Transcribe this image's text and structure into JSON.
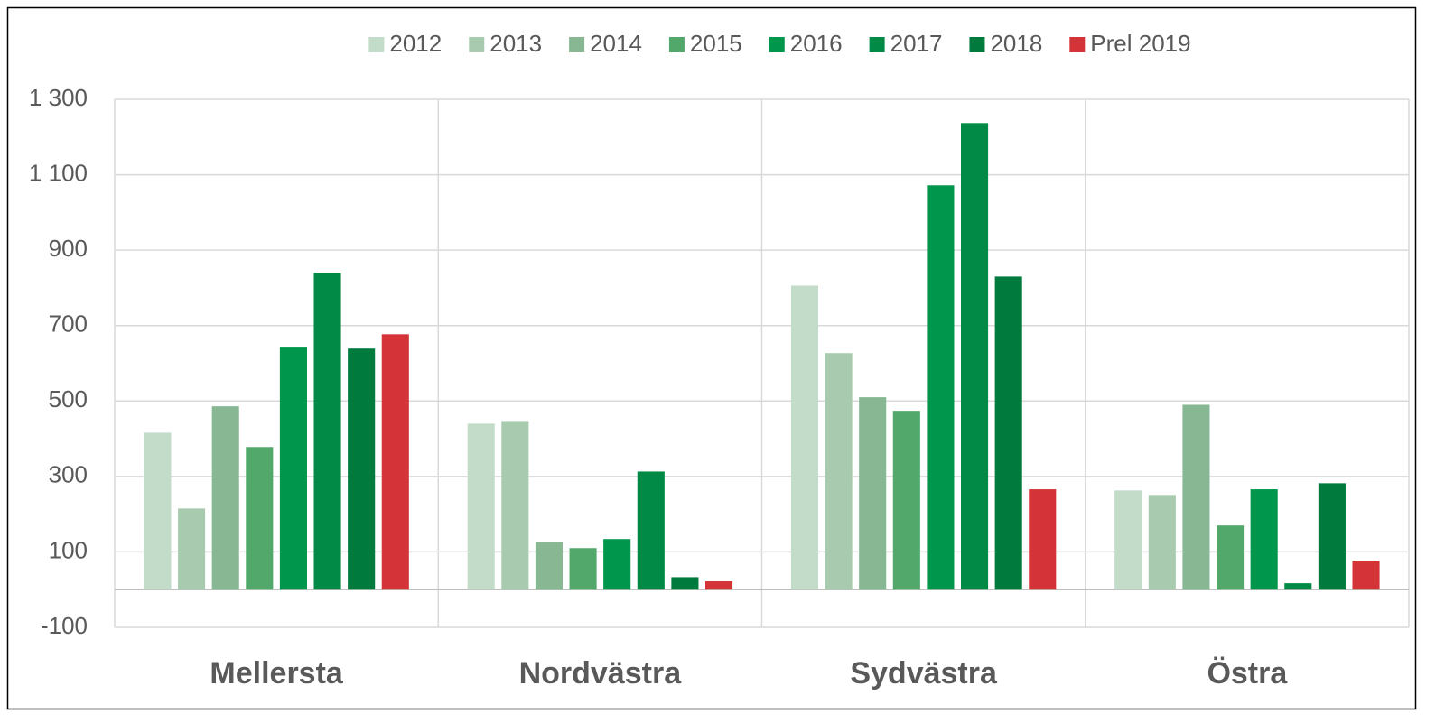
{
  "chart_data": {
    "type": "bar",
    "categories": [
      "Mellersta",
      "Nordvästra",
      "Sydvästra",
      "Östra"
    ],
    "series": [
      {
        "name": "2012",
        "color": "#c3dbc9",
        "values": [
          416,
          440,
          806,
          263
        ]
      },
      {
        "name": "2013",
        "color": "#a8cbb0",
        "values": [
          215,
          447,
          627,
          251
        ]
      },
      {
        "name": "2014",
        "color": "#87b893",
        "values": [
          486,
          127,
          510,
          490
        ]
      },
      {
        "name": "2015",
        "color": "#52a86b",
        "values": [
          378,
          110,
          474,
          170
        ]
      },
      {
        "name": "2016",
        "color": "#00964b",
        "values": [
          644,
          134,
          1072,
          266
        ]
      },
      {
        "name": "2017",
        "color": "#008a45",
        "values": [
          840,
          313,
          1237,
          17
        ]
      },
      {
        "name": "2018",
        "color": "#007a3d",
        "values": [
          639,
          33,
          830,
          282
        ]
      },
      {
        "name": "Prel 2019",
        "color": "#d43337",
        "values": [
          677,
          22,
          266,
          77
        ]
      }
    ],
    "ylim": [
      -100,
      1300
    ],
    "yticks": [
      {
        "value": 1300,
        "label": "1 300"
      },
      {
        "value": 1100,
        "label": "1 100"
      },
      900,
      700,
      500,
      300,
      100,
      -100
    ],
    "grid": true,
    "legend": "top"
  }
}
